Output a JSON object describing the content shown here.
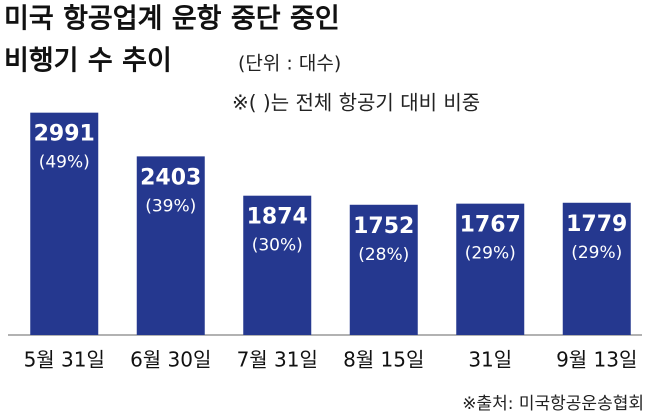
{
  "chart_data": {
    "type": "bar",
    "title": [
      "미국 항공업계 운항 중단 중인",
      "비행기 수 추이"
    ],
    "subtitle": "(단위 : 대수)",
    "note": "※( )는 전체 항공기 대비 비중",
    "source": "※출처: 미국항공운송협회",
    "categories": [
      "5월 31일",
      "6월 30일",
      "7월 31일",
      "8월 15일",
      "31일",
      "9월 13일"
    ],
    "values": [
      2991,
      2403,
      1874,
      1752,
      1767,
      1779
    ],
    "shares": {
      "values": [
        49,
        39,
        30,
        28,
        29,
        29
      ],
      "value_labels": [
        "(49%)",
        "(39%)",
        "(30%)",
        "(28%)",
        "(29%)",
        "(29%)"
      ]
    },
    "color": "#25388f",
    "ylim": [
      0,
      3000
    ]
  }
}
